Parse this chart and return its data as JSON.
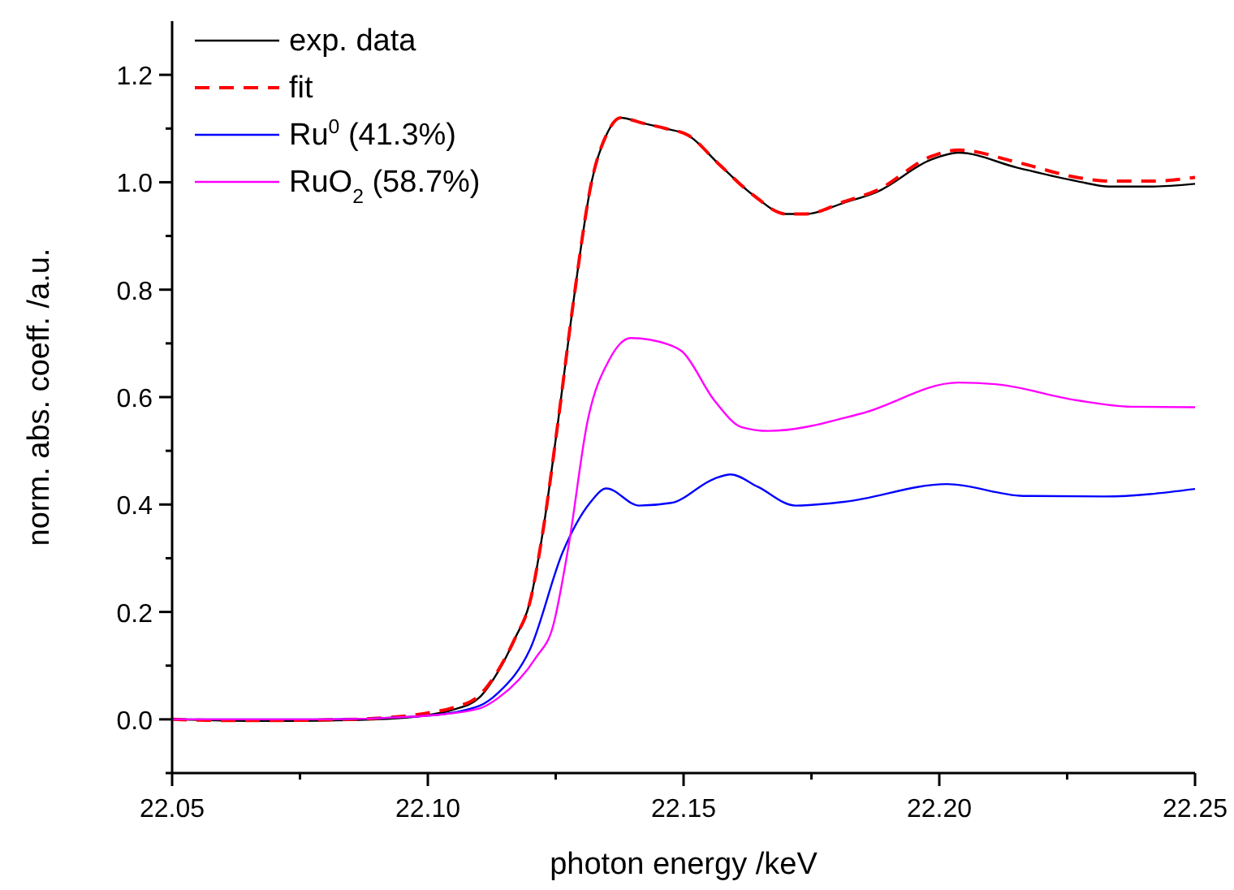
{
  "chart_data": {
    "type": "line",
    "xlabel": "photon energy /keV",
    "ylabel": "norm. abs. coeff. /a.u.",
    "xlim": [
      22.05,
      22.25
    ],
    "xticks": [
      22.05,
      {
        "value": 22.075,
        "label": null
      },
      {
        "value": 22.1,
        "label": "22.10"
      },
      {
        "value": 22.125,
        "label": null
      },
      22.15,
      {
        "value": 22.175,
        "label": null
      },
      {
        "value": 22.2,
        "label": "22.20"
      },
      {
        "value": 22.225,
        "label": null
      },
      22.25
    ],
    "ylim": [
      -0.1,
      1.3
    ],
    "yticks": [
      {
        "value": -0.1,
        "label": null
      },
      {
        "value": 0,
        "label": "0.0"
      },
      {
        "value": 0.1,
        "label": null
      },
      0.2,
      {
        "value": 0.3,
        "label": null
      },
      0.4,
      {
        "value": 0.5,
        "label": null
      },
      0.6,
      {
        "value": 0.7,
        "label": null
      },
      0.8,
      {
        "value": 0.9,
        "label": null
      },
      {
        "value": 1,
        "label": "1.0"
      },
      {
        "value": 1.1,
        "label": null
      },
      1.2
    ],
    "grid": false,
    "legend": "top left",
    "series": [
      {
        "name": "exp. data",
        "color": "#000000",
        "line_style": "solid",
        "x": [
          22.05,
          22.06,
          22.07,
          22.08,
          22.09,
          22.1,
          22.105,
          22.11,
          22.1138,
          22.117,
          22.12,
          22.1225,
          22.1254,
          22.1285,
          22.132,
          22.135,
          22.1377,
          22.142,
          22.1465,
          22.1508,
          22.1571,
          22.1635,
          22.17,
          22.174,
          22.1814,
          22.1878,
          22.1984,
          22.2037,
          22.2153,
          22.2269,
          22.2333,
          22.2417,
          22.25
        ],
        "values": [
          0,
          -0.002,
          -0.003,
          -0.002,
          0,
          0.008,
          0.018,
          0.04,
          0.09,
          0.15,
          0.22,
          0.35,
          0.55,
          0.78,
          1.0,
          1.09,
          1.12,
          1.11,
          1.1,
          1.088,
          1.032,
          0.977,
          0.941,
          0.941,
          0.962,
          0.982,
          1.042,
          1.055,
          1.027,
          1.002,
          0.992,
          0.992,
          0.997
        ]
      },
      {
        "name": "fit",
        "color": "#ff0000",
        "line_style": "dashed",
        "x": [
          22.05,
          22.06,
          22.07,
          22.08,
          22.09,
          22.1,
          22.105,
          22.11,
          22.1138,
          22.117,
          22.12,
          22.1225,
          22.1254,
          22.1285,
          22.132,
          22.135,
          22.1377,
          22.142,
          22.1465,
          22.1508,
          22.1571,
          22.1635,
          22.17,
          22.174,
          22.1814,
          22.1878,
          22.1984,
          22.2037,
          22.2153,
          22.2269,
          22.2333,
          22.2417,
          22.25
        ],
        "values": [
          0,
          -0.002,
          -0.002,
          -0.001,
          0.002,
          0.012,
          0.022,
          0.044,
          0.092,
          0.15,
          0.22,
          0.35,
          0.55,
          0.78,
          1.0,
          1.09,
          1.12,
          1.11,
          1.1,
          1.088,
          1.032,
          0.977,
          0.941,
          0.941,
          0.964,
          0.985,
          1.048,
          1.06,
          1.037,
          1.009,
          1.002,
          1.002,
          1.009
        ]
      },
      {
        "name": "Ru$^{0}$ (41.3%)",
        "color": "#0000ff",
        "line_style": "solid",
        "x": [
          22.05,
          22.08,
          22.1,
          22.11,
          22.1138,
          22.12,
          22.1264,
          22.1317,
          22.1349,
          22.1413,
          22.1476,
          22.156,
          22.1592,
          22.1645,
          22.1719,
          22.1814,
          22.2015,
          22.2164,
          22.2323,
          22.25
        ],
        "values": [
          0,
          0,
          0.007,
          0.025,
          0.05,
          0.131,
          0.312,
          0.403,
          0.43,
          0.398,
          0.403,
          0.448,
          0.456,
          0.433,
          0.398,
          0.405,
          0.438,
          0.416,
          0.415,
          0.429
        ]
      },
      {
        "name": "RuO$_{2}$ (58.7%)",
        "color": "#ff00ff",
        "line_style": "solid",
        "x": [
          22.05,
          22.08,
          22.1,
          22.11,
          22.1138,
          22.1212,
          22.1244,
          22.1275,
          22.1312,
          22.1355,
          22.1397,
          22.147,
          22.1497,
          22.156,
          22.1614,
          22.1666,
          22.1846,
          22.2037,
          22.211,
          22.2269,
          22.2375,
          22.25
        ],
        "values": [
          0,
          0,
          0.007,
          0.02,
          0.04,
          0.116,
          0.171,
          0.322,
          0.554,
          0.67,
          0.71,
          0.698,
          0.685,
          0.594,
          0.544,
          0.537,
          0.569,
          0.627,
          0.624,
          0.594,
          0.582,
          0.581
        ]
      }
    ]
  }
}
